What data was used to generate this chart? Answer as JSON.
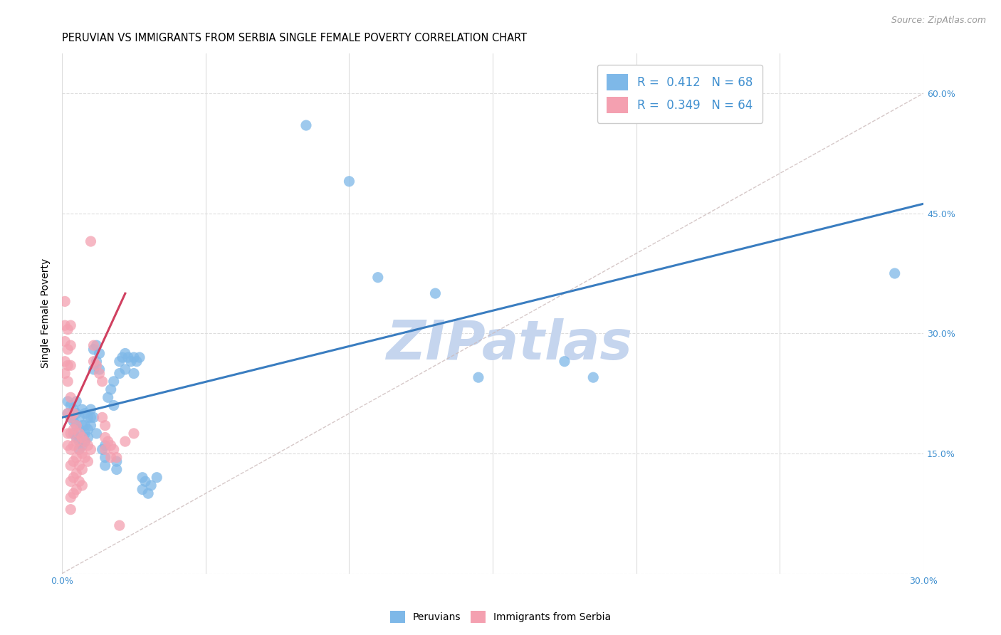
{
  "title": "PERUVIAN VS IMMIGRANTS FROM SERBIA SINGLE FEMALE POVERTY CORRELATION CHART",
  "source": "Source: ZipAtlas.com",
  "ylabel": "Single Female Poverty",
  "xlim": [
    0.0,
    0.3
  ],
  "ylim": [
    0.0,
    0.65
  ],
  "xticks": [
    0.0,
    0.05,
    0.1,
    0.15,
    0.2,
    0.25,
    0.3
  ],
  "yticks": [
    0.0,
    0.15,
    0.3,
    0.45,
    0.6
  ],
  "ytick_labels_right": [
    "",
    "15.0%",
    "30.0%",
    "45.0%",
    "60.0%"
  ],
  "legend_color1": "#7EB8E8",
  "legend_color2": "#F4A0B0",
  "scatter_color1": "#7EB8E8",
  "scatter_color2": "#F4A0B0",
  "line_color1": "#3A7DC0",
  "line_color2": "#D04060",
  "blue_line_x": [
    0.0,
    0.3
  ],
  "blue_line_y": [
    0.195,
    0.462
  ],
  "pink_line_x": [
    0.0,
    0.022
  ],
  "pink_line_y": [
    0.178,
    0.35
  ],
  "dashed_line_x": [
    0.0,
    0.3
  ],
  "dashed_line_y": [
    0.0,
    0.6
  ],
  "watermark": "ZIPatlas",
  "watermark_color": "#C5D5EE",
  "background_color": "#FFFFFF",
  "grid_color": "#DDDDDD",
  "blue_points": [
    [
      0.002,
      0.215
    ],
    [
      0.002,
      0.2
    ],
    [
      0.003,
      0.21
    ],
    [
      0.003,
      0.195
    ],
    [
      0.004,
      0.205
    ],
    [
      0.004,
      0.19
    ],
    [
      0.004,
      0.175
    ],
    [
      0.005,
      0.2
    ],
    [
      0.005,
      0.185
    ],
    [
      0.005,
      0.17
    ],
    [
      0.005,
      0.215
    ],
    [
      0.006,
      0.195
    ],
    [
      0.006,
      0.18
    ],
    [
      0.006,
      0.165
    ],
    [
      0.006,
      0.155
    ],
    [
      0.007,
      0.205
    ],
    [
      0.007,
      0.185
    ],
    [
      0.007,
      0.17
    ],
    [
      0.007,
      0.16
    ],
    [
      0.008,
      0.2
    ],
    [
      0.008,
      0.185
    ],
    [
      0.008,
      0.175
    ],
    [
      0.008,
      0.165
    ],
    [
      0.009,
      0.195
    ],
    [
      0.009,
      0.18
    ],
    [
      0.009,
      0.17
    ],
    [
      0.01,
      0.205
    ],
    [
      0.01,
      0.195
    ],
    [
      0.01,
      0.185
    ],
    [
      0.011,
      0.28
    ],
    [
      0.011,
      0.255
    ],
    [
      0.011,
      0.195
    ],
    [
      0.012,
      0.285
    ],
    [
      0.012,
      0.265
    ],
    [
      0.012,
      0.175
    ],
    [
      0.013,
      0.275
    ],
    [
      0.013,
      0.255
    ],
    [
      0.014,
      0.155
    ],
    [
      0.015,
      0.16
    ],
    [
      0.015,
      0.145
    ],
    [
      0.015,
      0.135
    ],
    [
      0.016,
      0.22
    ],
    [
      0.017,
      0.23
    ],
    [
      0.018,
      0.24
    ],
    [
      0.018,
      0.21
    ],
    [
      0.019,
      0.14
    ],
    [
      0.019,
      0.13
    ],
    [
      0.02,
      0.265
    ],
    [
      0.02,
      0.25
    ],
    [
      0.021,
      0.27
    ],
    [
      0.022,
      0.275
    ],
    [
      0.022,
      0.255
    ],
    [
      0.023,
      0.27
    ],
    [
      0.024,
      0.265
    ],
    [
      0.025,
      0.27
    ],
    [
      0.025,
      0.25
    ],
    [
      0.026,
      0.265
    ],
    [
      0.027,
      0.27
    ],
    [
      0.028,
      0.12
    ],
    [
      0.028,
      0.105
    ],
    [
      0.029,
      0.115
    ],
    [
      0.03,
      0.1
    ],
    [
      0.031,
      0.11
    ],
    [
      0.033,
      0.12
    ],
    [
      0.085,
      0.56
    ],
    [
      0.1,
      0.49
    ],
    [
      0.11,
      0.37
    ],
    [
      0.13,
      0.35
    ],
    [
      0.145,
      0.245
    ],
    [
      0.175,
      0.265
    ],
    [
      0.185,
      0.245
    ],
    [
      0.29,
      0.375
    ]
  ],
  "pink_points": [
    [
      0.001,
      0.34
    ],
    [
      0.001,
      0.31
    ],
    [
      0.001,
      0.29
    ],
    [
      0.001,
      0.265
    ],
    [
      0.001,
      0.25
    ],
    [
      0.002,
      0.305
    ],
    [
      0.002,
      0.28
    ],
    [
      0.002,
      0.26
    ],
    [
      0.002,
      0.24
    ],
    [
      0.002,
      0.2
    ],
    [
      0.002,
      0.175
    ],
    [
      0.002,
      0.16
    ],
    [
      0.003,
      0.31
    ],
    [
      0.003,
      0.285
    ],
    [
      0.003,
      0.26
    ],
    [
      0.003,
      0.22
    ],
    [
      0.003,
      0.195
    ],
    [
      0.003,
      0.175
    ],
    [
      0.003,
      0.155
    ],
    [
      0.003,
      0.135
    ],
    [
      0.003,
      0.115
    ],
    [
      0.003,
      0.095
    ],
    [
      0.003,
      0.08
    ],
    [
      0.004,
      0.2
    ],
    [
      0.004,
      0.18
    ],
    [
      0.004,
      0.16
    ],
    [
      0.004,
      0.14
    ],
    [
      0.004,
      0.12
    ],
    [
      0.004,
      0.1
    ],
    [
      0.005,
      0.185
    ],
    [
      0.005,
      0.165
    ],
    [
      0.005,
      0.145
    ],
    [
      0.005,
      0.125
    ],
    [
      0.005,
      0.105
    ],
    [
      0.006,
      0.175
    ],
    [
      0.006,
      0.155
    ],
    [
      0.006,
      0.135
    ],
    [
      0.006,
      0.115
    ],
    [
      0.007,
      0.17
    ],
    [
      0.007,
      0.15
    ],
    [
      0.007,
      0.13
    ],
    [
      0.007,
      0.11
    ],
    [
      0.008,
      0.165
    ],
    [
      0.008,
      0.145
    ],
    [
      0.009,
      0.16
    ],
    [
      0.009,
      0.14
    ],
    [
      0.01,
      0.415
    ],
    [
      0.01,
      0.155
    ],
    [
      0.011,
      0.285
    ],
    [
      0.011,
      0.265
    ],
    [
      0.012,
      0.26
    ],
    [
      0.013,
      0.25
    ],
    [
      0.014,
      0.24
    ],
    [
      0.014,
      0.195
    ],
    [
      0.015,
      0.185
    ],
    [
      0.015,
      0.17
    ],
    [
      0.015,
      0.155
    ],
    [
      0.016,
      0.165
    ],
    [
      0.017,
      0.16
    ],
    [
      0.017,
      0.145
    ],
    [
      0.018,
      0.155
    ],
    [
      0.019,
      0.145
    ],
    [
      0.02,
      0.06
    ],
    [
      0.022,
      0.165
    ],
    [
      0.025,
      0.175
    ]
  ]
}
